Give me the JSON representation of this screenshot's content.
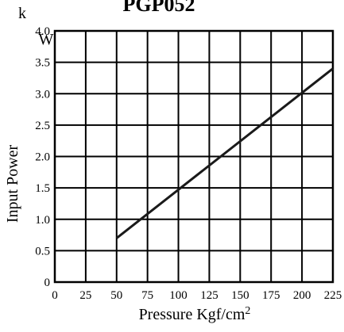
{
  "chart_data": {
    "type": "line",
    "title": "PGP052",
    "ylabel": "Input Power",
    "y_unit": "kW",
    "y_unit_top": "k",
    "y_unit_bottom": "W",
    "xlabel": "Pressure Kgf/cm",
    "xlabel_superscript": "2",
    "xlim": [
      0,
      225
    ],
    "ylim": [
      0,
      4.0
    ],
    "x_ticks": [
      "0",
      "25",
      "50",
      "75",
      "100",
      "125",
      "150",
      "175",
      "200",
      "225"
    ],
    "y_ticks": [
      "0",
      "0.5",
      "1.0",
      "1.5",
      "2.0",
      "2.5",
      "3.0",
      "3.5",
      "4.0"
    ],
    "grid": true,
    "series": [
      {
        "x": [
          50,
          225
        ],
        "y": [
          0.7,
          3.4
        ]
      }
    ],
    "colors": {
      "line": "#1a1a1a",
      "grid": "#000000",
      "background": "#ffffff"
    }
  }
}
